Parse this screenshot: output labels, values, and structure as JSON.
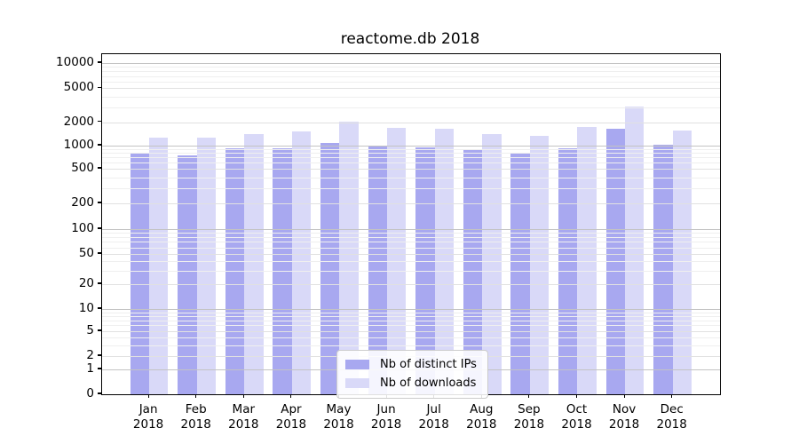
{
  "title": "reactome.db 2018",
  "legend": {
    "items": [
      {
        "label": "Nb of distinct IPs",
        "color": "#a8a8f0"
      },
      {
        "label": "Nb of downloads",
        "color": "#d9d9f8"
      }
    ]
  },
  "x_axis": {
    "months": [
      "Jan",
      "Feb",
      "Mar",
      "Apr",
      "May",
      "Jun",
      "Jul",
      "Aug",
      "Sep",
      "Oct",
      "Nov",
      "Dec"
    ],
    "year": "2018"
  },
  "y_axis": {
    "ticks": [
      10000,
      5000,
      2000,
      1000,
      500,
      200,
      100,
      50,
      20,
      10,
      5,
      2,
      1,
      0
    ]
  },
  "colors": {
    "ips_bar": "#a8a8f0",
    "downloads_bar": "#d9d9f8",
    "grid_decade": "#c3c3c3",
    "grid_labeled": "#e1e1e1",
    "grid_minor": "#efefef",
    "axis": "#000000",
    "legend_border": "#cccccc"
  },
  "chart_data": {
    "type": "bar",
    "title": "reactome.db 2018",
    "categories": [
      "Jan 2018",
      "Feb 2018",
      "Mar 2018",
      "Apr 2018",
      "May 2018",
      "Jun 2018",
      "Jul 2018",
      "Aug 2018",
      "Sep 2018",
      "Oct 2018",
      "Nov 2018",
      "Dec 2018"
    ],
    "series": [
      {
        "name": "Nb of distinct IPs",
        "color": "#a8a8f0",
        "values": [
          800,
          740,
          930,
          930,
          1090,
          1000,
          960,
          890,
          800,
          930,
          1650,
          1030
        ]
      },
      {
        "name": "Nb of downloads",
        "color": "#d9d9f8",
        "values": [
          1270,
          1270,
          1410,
          1520,
          2040,
          1690,
          1660,
          1390,
          1320,
          1750,
          3050,
          1580
        ]
      }
    ],
    "xlabel": "",
    "ylabel": "",
    "yscale": "symlog",
    "ylim": [
      0,
      10000
    ],
    "yticks": [
      0,
      1,
      2,
      5,
      10,
      20,
      50,
      100,
      200,
      500,
      1000,
      2000,
      5000,
      10000
    ],
    "grid": true,
    "legend_position": "lower center"
  }
}
